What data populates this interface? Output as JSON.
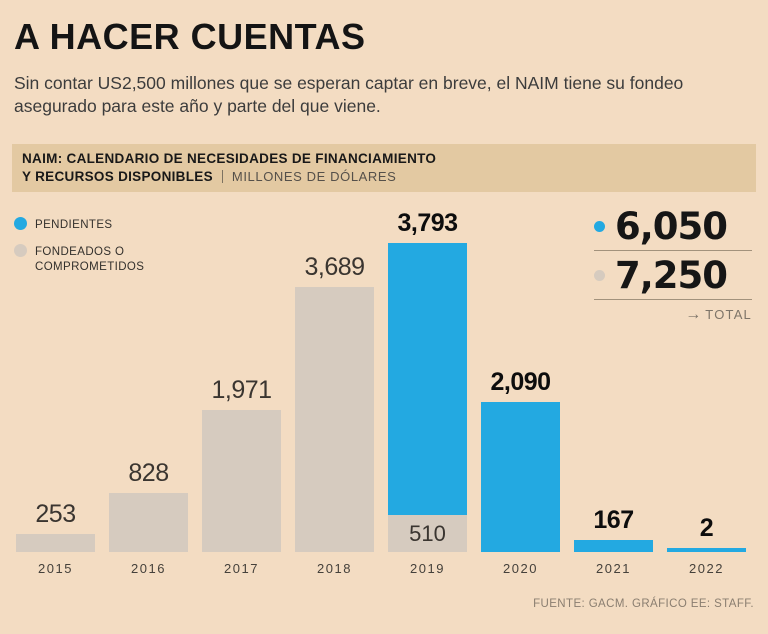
{
  "page": {
    "title": "A HACER CUENTAS",
    "subtitle": "Sin contar US2,500 millones que se esperan captar en breve, el NAIM tiene su fondeo asegurado para este año y parte del que viene.",
    "footer": "FUENTE: GACM. GRÁFICO EE: STAFF."
  },
  "band": {
    "line1": "NAIM: CALENDARIO DE NECESIDADES DE FINANCIAMIENTO",
    "line2_bold": "Y RECURSOS DISPONIBLES",
    "line2_units": "MILLONES DE DÓLARES"
  },
  "legend": {
    "pendientes": "PENDIENTES",
    "fondeados": "FONDEADOS O\nCOMPROMETIDOS"
  },
  "totals": {
    "pendientes": "6,050",
    "fondeados": "7,250",
    "total_label": "TOTAL",
    "arrow": "→"
  },
  "colors": {
    "pendientes": "#23a9e1",
    "fondeados": "#d6cbbf",
    "background": "#f3dcc2",
    "band": "#e3c9a2"
  },
  "chart_data": {
    "type": "bar",
    "stacked": true,
    "title": "NAIM: CALENDARIO DE NECESIDADES DE FINANCIAMIENTO Y RECURSOS DISPONIBLES",
    "units": "MILLONES DE DÓLARES",
    "xlabel": "",
    "ylabel": "Millones de dólares",
    "ylim": [
      0,
      4400
    ],
    "grid": false,
    "legend_position": "top-left",
    "categories": [
      "2015",
      "2016",
      "2017",
      "2018",
      "2019",
      "2020",
      "2021",
      "2022"
    ],
    "series": [
      {
        "name": "FONDEADOS O COMPROMETIDOS",
        "color_key": "fondeados",
        "values": [
          253,
          828,
          1971,
          3689,
          510,
          0,
          0,
          0
        ]
      },
      {
        "name": "PENDIENTES",
        "color_key": "pendientes",
        "values": [
          0,
          0,
          0,
          0,
          3793,
          2090,
          167,
          2
        ]
      }
    ],
    "totals": {
      "pendientes": 6050,
      "fondeados": 7250
    },
    "bars": [
      {
        "year": "2015",
        "label": "253",
        "label_bold": false,
        "segments": [
          {
            "type": "fondeados",
            "value": 253
          }
        ]
      },
      {
        "year": "2016",
        "label": "828",
        "label_bold": false,
        "segments": [
          {
            "type": "fondeados",
            "value": 828
          }
        ]
      },
      {
        "year": "2017",
        "label": "1,971",
        "label_bold": false,
        "segments": [
          {
            "type": "fondeados",
            "value": 1971
          }
        ]
      },
      {
        "year": "2018",
        "label": "3,689",
        "label_bold": false,
        "segments": [
          {
            "type": "fondeados",
            "value": 3689
          }
        ]
      },
      {
        "year": "2019",
        "label": "3,793",
        "label_bold": true,
        "segments": [
          {
            "type": "pendientes",
            "value": 3793
          },
          {
            "type": "fondeados",
            "value": 510,
            "inner_label": "510"
          }
        ]
      },
      {
        "year": "2020",
        "label": "2,090",
        "label_bold": true,
        "segments": [
          {
            "type": "pendientes",
            "value": 2090
          }
        ]
      },
      {
        "year": "2021",
        "label": "167",
        "label_bold": true,
        "segments": [
          {
            "type": "pendientes",
            "value": 167
          }
        ]
      },
      {
        "year": "2022",
        "label": "2",
        "label_bold": true,
        "segments": [
          {
            "type": "pendientes",
            "value": 2
          }
        ]
      }
    ]
  }
}
